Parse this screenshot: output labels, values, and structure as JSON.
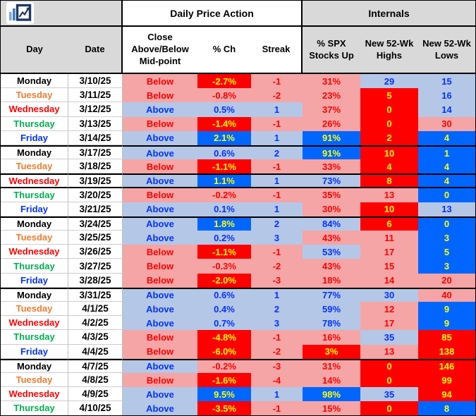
{
  "header": {
    "groups": [
      {
        "label": "Daily Price Action"
      },
      {
        "label": "Internals"
      }
    ],
    "columns": [
      {
        "label": "Day"
      },
      {
        "label": "Date"
      },
      {
        "label": "Close\nAbove/Below\nMid-point"
      },
      {
        "label": "% Ch"
      },
      {
        "label": "Streak"
      },
      {
        "label": "% SPX\nStocks Up"
      },
      {
        "label": "New 52-Wk\nHighs"
      },
      {
        "label": "New 52-Wk\nLows"
      }
    ]
  },
  "day_colors": {
    "Monday": "#000000",
    "Tuesday": "#ED7D31",
    "Wednesday": "#FF0000",
    "Thursday": "#00B050",
    "Friday": "#0432FF"
  },
  "style_legend": {
    "pink": {
      "bg": "#F5A5A5",
      "text": "#FF0000",
      "meaning": "bearish"
    },
    "ltblue": {
      "bg": "#B4C7E7",
      "text": "#0432FF",
      "meaning": "bullish"
    },
    "red": {
      "bg": "#FF0000",
      "text": "#FFFF00",
      "meaning": "extreme bearish"
    },
    "blue": {
      "bg": "#0066FF",
      "text": "#FFFF00",
      "meaning": "extreme bullish"
    }
  },
  "ui_colors": {
    "header_gray": "#D9D9D9",
    "grid_line": "#BFBFBF",
    "week_divider": "#000000"
  },
  "chart_data": {
    "type": "table",
    "title": "Daily Price Action & Internals",
    "column_groups": [
      "Daily Price Action",
      "Internals"
    ],
    "columns": [
      "Day",
      "Date",
      "Close Above/Below Mid-point",
      "% Ch",
      "Streak",
      "% SPX Stocks Up",
      "New 52-Wk Highs",
      "New 52-Wk Lows"
    ],
    "rows": [
      {
        "day": "Monday",
        "date": "3/10/25",
        "close": {
          "v": "Below",
          "s": "pink"
        },
        "pch": {
          "v": "-2.7%",
          "s": "red"
        },
        "streak": {
          "v": "-1",
          "s": "pink"
        },
        "spx": {
          "v": "31%",
          "s": "pink"
        },
        "highs": {
          "v": "29",
          "s": "ltblue"
        },
        "lows": {
          "v": "15",
          "s": "ltblue"
        },
        "week_start": false,
        "boxed": false
      },
      {
        "day": "Tuesday",
        "date": "3/11/25",
        "close": {
          "v": "Below",
          "s": "pink"
        },
        "pch": {
          "v": "-0.8%",
          "s": "pink"
        },
        "streak": {
          "v": "-2",
          "s": "pink"
        },
        "spx": {
          "v": "23%",
          "s": "pink"
        },
        "highs": {
          "v": "5",
          "s": "red"
        },
        "lows": {
          "v": "16",
          "s": "ltblue"
        },
        "week_start": false,
        "boxed": false
      },
      {
        "day": "Wednesday",
        "date": "3/12/25",
        "close": {
          "v": "Above",
          "s": "ltblue"
        },
        "pch": {
          "v": "0.5%",
          "s": "ltblue"
        },
        "streak": {
          "v": "1",
          "s": "ltblue"
        },
        "spx": {
          "v": "37%",
          "s": "pink"
        },
        "highs": {
          "v": "0",
          "s": "red"
        },
        "lows": {
          "v": "14",
          "s": "ltblue"
        },
        "week_start": false,
        "boxed": false
      },
      {
        "day": "Thursday",
        "date": "3/13/25",
        "close": {
          "v": "Below",
          "s": "pink"
        },
        "pch": {
          "v": "-1.4%",
          "s": "red"
        },
        "streak": {
          "v": "-1",
          "s": "pink"
        },
        "spx": {
          "v": "26%",
          "s": "pink"
        },
        "highs": {
          "v": "0",
          "s": "red"
        },
        "lows": {
          "v": "30",
          "s": "pink"
        },
        "week_start": false,
        "boxed": false
      },
      {
        "day": "Friday",
        "date": "3/14/25",
        "close": {
          "v": "Above",
          "s": "ltblue"
        },
        "pch": {
          "v": "2.1%",
          "s": "blue"
        },
        "streak": {
          "v": "1",
          "s": "ltblue"
        },
        "spx": {
          "v": "91%",
          "s": "blue"
        },
        "highs": {
          "v": "2",
          "s": "red"
        },
        "lows": {
          "v": "4",
          "s": "blue"
        },
        "week_start": false,
        "boxed": false
      },
      {
        "day": "Monday",
        "date": "3/17/25",
        "close": {
          "v": "Above",
          "s": "ltblue"
        },
        "pch": {
          "v": "0.6%",
          "s": "ltblue"
        },
        "streak": {
          "v": "2",
          "s": "ltblue"
        },
        "spx": {
          "v": "91%",
          "s": "blue"
        },
        "highs": {
          "v": "10",
          "s": "red"
        },
        "lows": {
          "v": "1",
          "s": "blue"
        },
        "week_start": true,
        "boxed": false
      },
      {
        "day": "Tuesday",
        "date": "3/18/25",
        "close": {
          "v": "Below",
          "s": "pink"
        },
        "pch": {
          "v": "-1.1%",
          "s": "red"
        },
        "streak": {
          "v": "-1",
          "s": "pink"
        },
        "spx": {
          "v": "33%",
          "s": "pink"
        },
        "highs": {
          "v": "4",
          "s": "red"
        },
        "lows": {
          "v": "4",
          "s": "blue"
        },
        "week_start": false,
        "boxed": false
      },
      {
        "day": "Wednesday",
        "date": "3/19/25",
        "close": {
          "v": "Above",
          "s": "ltblue"
        },
        "pch": {
          "v": "1.1%",
          "s": "blue"
        },
        "streak": {
          "v": "1",
          "s": "ltblue"
        },
        "spx": {
          "v": "73%",
          "s": "ltblue"
        },
        "highs": {
          "v": "8",
          "s": "red"
        },
        "lows": {
          "v": "4",
          "s": "blue"
        },
        "week_start": false,
        "boxed": true
      },
      {
        "day": "Thursday",
        "date": "3/20/25",
        "close": {
          "v": "Below",
          "s": "pink"
        },
        "pch": {
          "v": "-0.2%",
          "s": "pink"
        },
        "streak": {
          "v": "-1",
          "s": "pink"
        },
        "spx": {
          "v": "35%",
          "s": "pink"
        },
        "highs": {
          "v": "13",
          "s": "pink"
        },
        "lows": {
          "v": "0",
          "s": "blue"
        },
        "week_start": false,
        "boxed": false
      },
      {
        "day": "Friday",
        "date": "3/21/25",
        "close": {
          "v": "Above",
          "s": "ltblue"
        },
        "pch": {
          "v": "0.1%",
          "s": "ltblue"
        },
        "streak": {
          "v": "1",
          "s": "ltblue"
        },
        "spx": {
          "v": "30%",
          "s": "pink"
        },
        "highs": {
          "v": "10",
          "s": "red"
        },
        "lows": {
          "v": "13",
          "s": "ltblue"
        },
        "week_start": false,
        "boxed": false
      },
      {
        "day": "Monday",
        "date": "3/24/25",
        "close": {
          "v": "Above",
          "s": "ltblue"
        },
        "pch": {
          "v": "1.8%",
          "s": "blue"
        },
        "streak": {
          "v": "2",
          "s": "ltblue"
        },
        "spx": {
          "v": "84%",
          "s": "ltblue"
        },
        "highs": {
          "v": "6",
          "s": "red"
        },
        "lows": {
          "v": "0",
          "s": "blue"
        },
        "week_start": true,
        "boxed": false
      },
      {
        "day": "Tuesday",
        "date": "3/25/25",
        "close": {
          "v": "Above",
          "s": "ltblue"
        },
        "pch": {
          "v": "0.2%",
          "s": "ltblue"
        },
        "streak": {
          "v": "3",
          "s": "ltblue"
        },
        "spx": {
          "v": "43%",
          "s": "pink"
        },
        "highs": {
          "v": "11",
          "s": "pink"
        },
        "lows": {
          "v": "3",
          "s": "blue"
        },
        "week_start": false,
        "boxed": false
      },
      {
        "day": "Wednesday",
        "date": "3/26/25",
        "close": {
          "v": "Below",
          "s": "pink"
        },
        "pch": {
          "v": "-1.1%",
          "s": "red"
        },
        "streak": {
          "v": "-1",
          "s": "pink"
        },
        "spx": {
          "v": "53%",
          "s": "ltblue"
        },
        "highs": {
          "v": "17",
          "s": "pink"
        },
        "lows": {
          "v": "5",
          "s": "blue"
        },
        "week_start": false,
        "boxed": false
      },
      {
        "day": "Thursday",
        "date": "3/27/25",
        "close": {
          "v": "Below",
          "s": "pink"
        },
        "pch": {
          "v": "-0.3%",
          "s": "pink"
        },
        "streak": {
          "v": "-2",
          "s": "pink"
        },
        "spx": {
          "v": "43%",
          "s": "pink"
        },
        "highs": {
          "v": "15",
          "s": "pink"
        },
        "lows": {
          "v": "3",
          "s": "blue"
        },
        "week_start": false,
        "boxed": false
      },
      {
        "day": "Friday",
        "date": "3/28/25",
        "close": {
          "v": "Below",
          "s": "pink"
        },
        "pch": {
          "v": "-2.0%",
          "s": "red"
        },
        "streak": {
          "v": "-3",
          "s": "pink"
        },
        "spx": {
          "v": "18%",
          "s": "pink"
        },
        "highs": {
          "v": "14",
          "s": "pink"
        },
        "lows": {
          "v": "20",
          "s": "pink"
        },
        "week_start": false,
        "boxed": false
      },
      {
        "day": "Monday",
        "date": "3/31/25",
        "close": {
          "v": "Above",
          "s": "ltblue"
        },
        "pch": {
          "v": "0.6%",
          "s": "ltblue"
        },
        "streak": {
          "v": "1",
          "s": "ltblue"
        },
        "spx": {
          "v": "77%",
          "s": "ltblue"
        },
        "highs": {
          "v": "30",
          "s": "ltblue"
        },
        "lows": {
          "v": "40",
          "s": "pink"
        },
        "week_start": true,
        "boxed": false
      },
      {
        "day": "Tuesday",
        "date": "4/1/25",
        "close": {
          "v": "Above",
          "s": "ltblue"
        },
        "pch": {
          "v": "0.4%",
          "s": "ltblue"
        },
        "streak": {
          "v": "2",
          "s": "ltblue"
        },
        "spx": {
          "v": "59%",
          "s": "ltblue"
        },
        "highs": {
          "v": "12",
          "s": "pink"
        },
        "lows": {
          "v": "9",
          "s": "blue"
        },
        "week_start": false,
        "boxed": false
      },
      {
        "day": "Wednesday",
        "date": "4/2/25",
        "close": {
          "v": "Above",
          "s": "ltblue"
        },
        "pch": {
          "v": "0.7%",
          "s": "ltblue"
        },
        "streak": {
          "v": "3",
          "s": "ltblue"
        },
        "spx": {
          "v": "78%",
          "s": "ltblue"
        },
        "highs": {
          "v": "17",
          "s": "pink"
        },
        "lows": {
          "v": "9",
          "s": "blue"
        },
        "week_start": false,
        "boxed": false
      },
      {
        "day": "Thursday",
        "date": "4/3/25",
        "close": {
          "v": "Below",
          "s": "pink"
        },
        "pch": {
          "v": "-4.8%",
          "s": "red"
        },
        "streak": {
          "v": "-1",
          "s": "pink"
        },
        "spx": {
          "v": "16%",
          "s": "pink"
        },
        "highs": {
          "v": "35",
          "s": "ltblue"
        },
        "lows": {
          "v": "85",
          "s": "red"
        },
        "week_start": false,
        "boxed": false
      },
      {
        "day": "Friday",
        "date": "4/4/25",
        "close": {
          "v": "Below",
          "s": "pink"
        },
        "pch": {
          "v": "-6.0%",
          "s": "red"
        },
        "streak": {
          "v": "-2",
          "s": "pink"
        },
        "spx": {
          "v": "3%",
          "s": "red"
        },
        "highs": {
          "v": "13",
          "s": "pink"
        },
        "lows": {
          "v": "138",
          "s": "red"
        },
        "week_start": false,
        "boxed": false
      },
      {
        "day": "Monday",
        "date": "4/7/25",
        "close": {
          "v": "Above",
          "s": "ltblue"
        },
        "pch": {
          "v": "-0.2%",
          "s": "pink"
        },
        "streak": {
          "v": "-3",
          "s": "pink"
        },
        "spx": {
          "v": "31%",
          "s": "pink"
        },
        "highs": {
          "v": "0",
          "s": "red"
        },
        "lows": {
          "v": "146",
          "s": "red"
        },
        "week_start": true,
        "boxed": false
      },
      {
        "day": "Tuesday",
        "date": "4/8/25",
        "close": {
          "v": "Below",
          "s": "pink"
        },
        "pch": {
          "v": "-1.6%",
          "s": "red"
        },
        "streak": {
          "v": "-4",
          "s": "pink"
        },
        "spx": {
          "v": "14%",
          "s": "pink"
        },
        "highs": {
          "v": "0",
          "s": "red"
        },
        "lows": {
          "v": "99",
          "s": "red"
        },
        "week_start": false,
        "boxed": false
      },
      {
        "day": "Wednesday",
        "date": "4/9/25",
        "close": {
          "v": "Above",
          "s": "ltblue"
        },
        "pch": {
          "v": "9.5%",
          "s": "blue"
        },
        "streak": {
          "v": "1",
          "s": "ltblue"
        },
        "spx": {
          "v": "98%",
          "s": "blue"
        },
        "highs": {
          "v": "35",
          "s": "ltblue"
        },
        "lows": {
          "v": "94",
          "s": "red"
        },
        "week_start": false,
        "boxed": false
      },
      {
        "day": "Thursday",
        "date": "4/10/25",
        "close": {
          "v": "Above",
          "s": "ltblue"
        },
        "pch": {
          "v": "-3.5%",
          "s": "red"
        },
        "streak": {
          "v": "-1",
          "s": "pink"
        },
        "spx": {
          "v": "15%",
          "s": "pink"
        },
        "highs": {
          "v": "0",
          "s": "red"
        },
        "lows": {
          "v": "8",
          "s": "blue"
        },
        "week_start": false,
        "boxed": false
      }
    ]
  }
}
